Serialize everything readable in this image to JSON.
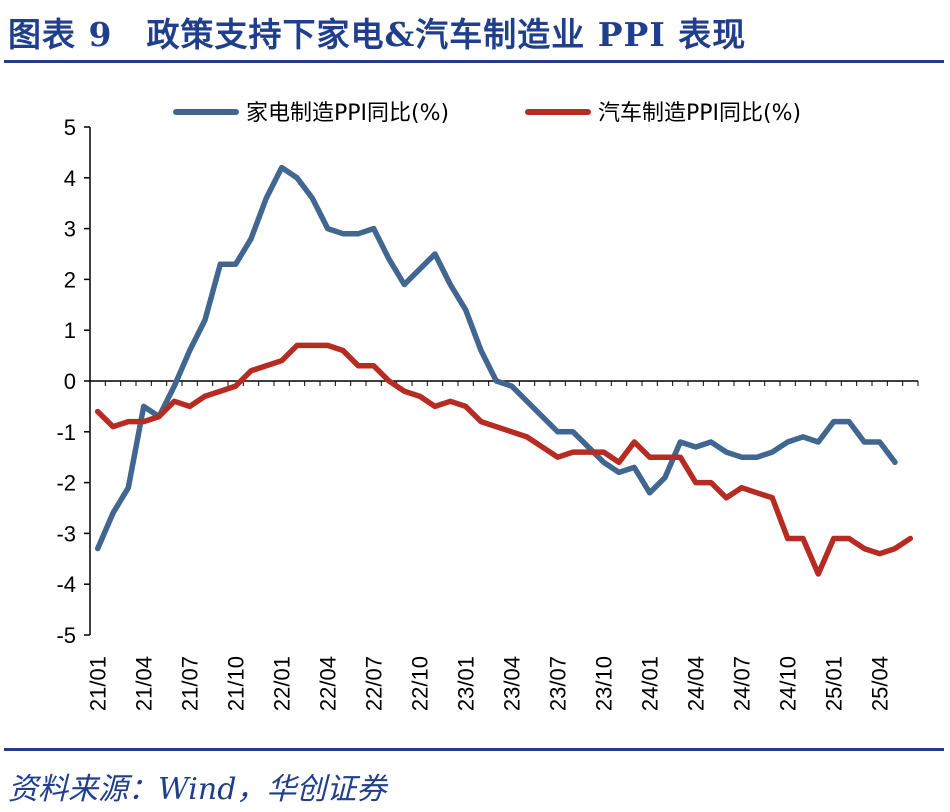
{
  "figure": {
    "title": "图表 9　政策支持下家电&汽车制造业 PPI 表现",
    "source": "资料来源：Wind，华创证券"
  },
  "chart_data": {
    "type": "line",
    "title": "图表 9 政策支持下家电&汽车制造业 PPI 表现",
    "ylim": [
      -5,
      5
    ],
    "yticks": [
      "5",
      "4",
      "3",
      "2",
      "1",
      "0",
      "-1",
      "-2",
      "-3",
      "-4",
      "-5"
    ],
    "ytick_values": [
      5,
      4,
      3,
      2,
      1,
      0,
      -1,
      -2,
      -3,
      -4,
      -5
    ],
    "xtick_labels": [
      "21/01",
      "21/04",
      "21/07",
      "21/10",
      "22/01",
      "22/04",
      "22/07",
      "22/10",
      "23/01",
      "23/04",
      "23/07",
      "23/10",
      "24/01",
      "24/04",
      "24/07",
      "24/10",
      "25/01",
      "25/04"
    ],
    "legend_position": "top",
    "colors": {
      "appliance": "#41668f",
      "auto": "#b62c23",
      "axis": "#000000"
    },
    "series": [
      {
        "name": "家电制造PPI同比(%)",
        "key": "appliance",
        "values": [
          -3.3,
          -2.6,
          -2.1,
          -0.5,
          -0.7,
          -0.1,
          0.6,
          1.2,
          2.3,
          2.3,
          2.8,
          3.6,
          4.2,
          4.0,
          3.6,
          3.0,
          2.9,
          2.9,
          3.0,
          2.4,
          1.9,
          2.2,
          2.5,
          1.9,
          1.4,
          0.6,
          -0.0,
          -0.1,
          -0.4,
          -0.7,
          -1.0,
          -1.0,
          -1.3,
          -1.6,
          -1.8,
          -1.7,
          -2.2,
          -1.9,
          -1.2,
          -1.3,
          -1.2,
          -1.4,
          -1.5,
          -1.5,
          -1.4,
          -1.2,
          -1.1,
          -1.2,
          -0.8,
          -0.8,
          -1.2,
          -1.2,
          -1.6
        ]
      },
      {
        "name": "汽车制造PPI同比(%)",
        "key": "auto",
        "values": [
          -0.6,
          -0.9,
          -0.8,
          -0.8,
          -0.7,
          -0.4,
          -0.5,
          -0.3,
          -0.2,
          -0.1,
          0.2,
          0.3,
          0.4,
          0.7,
          0.7,
          0.7,
          0.6,
          0.3,
          0.3,
          0.0,
          -0.2,
          -0.3,
          -0.5,
          -0.4,
          -0.5,
          -0.8,
          -0.9,
          -1.0,
          -1.1,
          -1.3,
          -1.5,
          -1.4,
          -1.4,
          -1.4,
          -1.6,
          -1.2,
          -1.5,
          -1.5,
          -1.5,
          -2.0,
          -2.0,
          -2.3,
          -2.1,
          -2.2,
          -2.3,
          -3.1,
          -3.1,
          -3.8,
          -3.1,
          -3.1,
          -3.3,
          -3.4,
          -3.3,
          -3.1
        ]
      }
    ]
  }
}
